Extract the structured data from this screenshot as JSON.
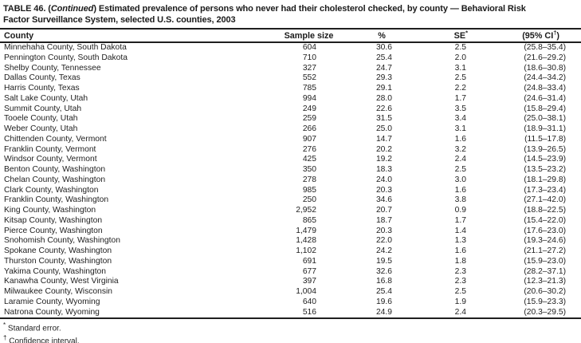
{
  "page": {
    "background_color": "#ffffff",
    "text_color": "#1e1e1e",
    "rule_color": "#1f1f1f"
  },
  "table": {
    "title": {
      "prefix": "TABLE 46. (",
      "continued": "Continued",
      "line1_rest": ") Estimated prevalence of persons who never had their cholesterol checked, by county — Behavioral Risk",
      "line2": "Factor Surveillance System, selected U.S. counties, 2003"
    },
    "columns": {
      "county": "County",
      "sample_size": "Sample size",
      "percent": "%",
      "se": "SE",
      "se_marker": "*",
      "ci_open": "(95% CI",
      "ci_marker": "†",
      "ci_close": ")"
    },
    "rows": [
      [
        "Minnehaha County, South Dakota",
        "604",
        "30.6",
        "2.5",
        "(25.8–35.4)"
      ],
      [
        "Pennington County, South Dakota",
        "710",
        "25.4",
        "2.0",
        "(21.6–29.2)"
      ],
      [
        "Shelby County, Tennessee",
        "327",
        "24.7",
        "3.1",
        "(18.6–30.8)"
      ],
      [
        "Dallas County, Texas",
        "552",
        "29.3",
        "2.5",
        "(24.4–34.2)"
      ],
      [
        "Harris County, Texas",
        "785",
        "29.1",
        "2.2",
        "(24.8–33.4)"
      ],
      [
        "Salt Lake County, Utah",
        "994",
        "28.0",
        "1.7",
        "(24.6–31.4)"
      ],
      [
        "Summit County, Utah",
        "249",
        "22.6",
        "3.5",
        "(15.8–29.4)"
      ],
      [
        "Tooele County, Utah",
        "259",
        "31.5",
        "3.4",
        "(25.0–38.1)"
      ],
      [
        "Weber County, Utah",
        "266",
        "25.0",
        "3.1",
        "(18.9–31.1)"
      ],
      [
        "Chittenden County, Vermont",
        "907",
        "14.7",
        "1.6",
        "(11.5–17.8)"
      ],
      [
        "Franklin County, Vermont",
        "276",
        "20.2",
        "3.2",
        "(13.9–26.5)"
      ],
      [
        "Windsor County, Vermont",
        "425",
        "19.2",
        "2.4",
        "(14.5–23.9)"
      ],
      [
        "Benton County, Washington",
        "350",
        "18.3",
        "2.5",
        "(13.5–23.2)"
      ],
      [
        "Chelan County, Washington",
        "278",
        "24.0",
        "3.0",
        "(18.1–29.8)"
      ],
      [
        "Clark County, Washington",
        "985",
        "20.3",
        "1.6",
        "(17.3–23.4)"
      ],
      [
        "Franklin County, Washington",
        "250",
        "34.6",
        "3.8",
        "(27.1–42.0)"
      ],
      [
        "King County, Washington",
        "2,952",
        "20.7",
        "0.9",
        "(18.8–22.5)"
      ],
      [
        "Kitsap County, Washington",
        "865",
        "18.7",
        "1.7",
        "(15.4–22.0)"
      ],
      [
        "Pierce County, Washington",
        "1,479",
        "20.3",
        "1.4",
        "(17.6–23.0)"
      ],
      [
        "Snohomish County, Washington",
        "1,428",
        "22.0",
        "1.3",
        "(19.3–24.6)"
      ],
      [
        "Spokane County, Washington",
        "1,102",
        "24.2",
        "1.6",
        "(21.1–27.2)"
      ],
      [
        "Thurston County, Washington",
        "691",
        "19.5",
        "1.8",
        "(15.9–23.0)"
      ],
      [
        "Yakima County, Washington",
        "677",
        "32.6",
        "2.3",
        "(28.2–37.1)"
      ],
      [
        "Kanawha County, West Virginia",
        "397",
        "16.8",
        "2.3",
        "(12.3–21.3)"
      ],
      [
        "Milwaukee County, Wisconsin",
        "1,004",
        "25.4",
        "2.5",
        "(20.6–30.2)"
      ],
      [
        "Laramie County, Wyoming",
        "640",
        "19.6",
        "1.9",
        "(15.9–23.3)"
      ],
      [
        "Natrona County, Wyoming",
        "516",
        "24.9",
        "2.4",
        "(20.3–29.5)"
      ]
    ],
    "footnotes": [
      {
        "marker": "*",
        "text": "Standard error."
      },
      {
        "marker": "†",
        "text": "Confidence interval."
      }
    ]
  }
}
